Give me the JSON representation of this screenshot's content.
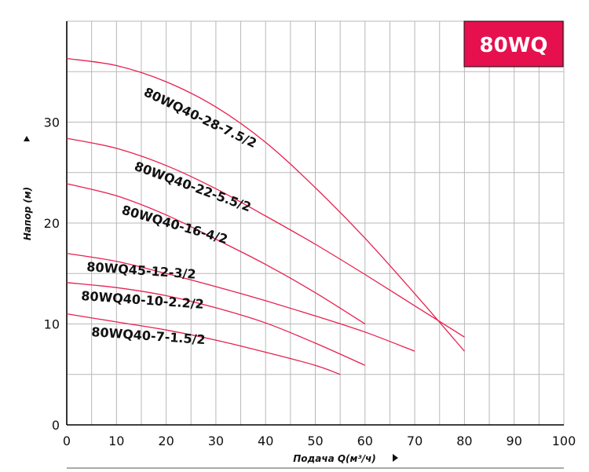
{
  "chart_data": {
    "type": "line",
    "badge": "80WQ",
    "xlabel": "Подача Q(м³/ч)",
    "ylabel": "Напор (м)",
    "xlim": [
      0,
      100
    ],
    "ylim": [
      0,
      40
    ],
    "x_ticks": [
      0,
      10,
      20,
      30,
      40,
      50,
      60,
      70,
      80,
      90,
      100
    ],
    "y_ticks": [
      0,
      10,
      20,
      30
    ],
    "grid": true,
    "colors": {
      "curve": "#e8204f",
      "badge": "#e6104e",
      "grid": "#b8b8b8",
      "axis": "#000000"
    },
    "series": [
      {
        "name": "80WQ40-28-7.5/2",
        "x": [
          0,
          10,
          20,
          30,
          40,
          50,
          60,
          70,
          80
        ],
        "y": [
          36.3,
          35.6,
          34.0,
          31.5,
          28.0,
          23.5,
          18.5,
          13.0,
          7.3
        ]
      },
      {
        "name": "80WQ40-22-5.5/2",
        "x": [
          0,
          10,
          20,
          30,
          40,
          50,
          60,
          70,
          80
        ],
        "y": [
          28.4,
          27.4,
          25.7,
          23.4,
          20.7,
          17.9,
          14.9,
          11.8,
          8.7
        ]
      },
      {
        "name": "80WQ40-16-4/2",
        "x": [
          0,
          10,
          20,
          30,
          40,
          50,
          60
        ],
        "y": [
          23.9,
          22.7,
          20.8,
          18.4,
          15.9,
          13.1,
          10.0
        ]
      },
      {
        "name": "80WQ45-12-3/2",
        "x": [
          0,
          10,
          20,
          30,
          40,
          50,
          60,
          70
        ],
        "y": [
          17.0,
          16.2,
          15.0,
          13.7,
          12.3,
          10.8,
          9.2,
          7.3
        ]
      },
      {
        "name": "80WQ40-10-2.2/2",
        "x": [
          0,
          10,
          20,
          30,
          40,
          50,
          60
        ],
        "y": [
          14.1,
          13.6,
          12.8,
          11.6,
          10.1,
          8.1,
          5.9
        ]
      },
      {
        "name": "80WQ40-7-1.5/2",
        "x": [
          0,
          10,
          20,
          30,
          40,
          50,
          55
        ],
        "y": [
          11.0,
          10.2,
          9.4,
          8.4,
          7.2,
          5.9,
          5.0
        ]
      }
    ]
  }
}
